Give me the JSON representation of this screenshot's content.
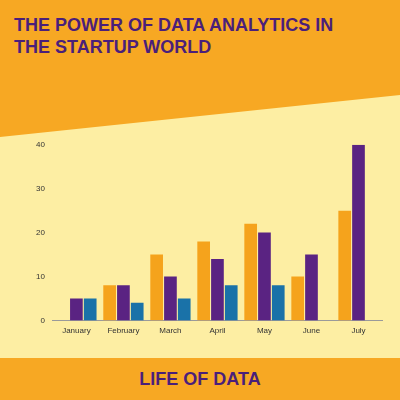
{
  "chart_data": {
    "type": "bar",
    "title": "THE POWER OF DATA ANALYTICS IN THE STARTUP WORLD",
    "categories": [
      "January",
      "February",
      "March",
      "April",
      "May",
      "June",
      "July"
    ],
    "series": [
      {
        "color": "#f5a31c",
        "values": [
          null,
          8,
          15,
          18,
          22,
          10,
          25
        ]
      },
      {
        "color": "#5a2382",
        "values": [
          5,
          8,
          10,
          14,
          20,
          15,
          40
        ]
      },
      {
        "color": "#1a72a8",
        "values": [
          5,
          4,
          5,
          8,
          8,
          null,
          null
        ]
      }
    ],
    "ylim": [
      0,
      40
    ],
    "yticks": [
      0,
      10,
      20,
      30,
      40
    ],
    "grid": false
  },
  "footer": "LIFE OF DATA"
}
